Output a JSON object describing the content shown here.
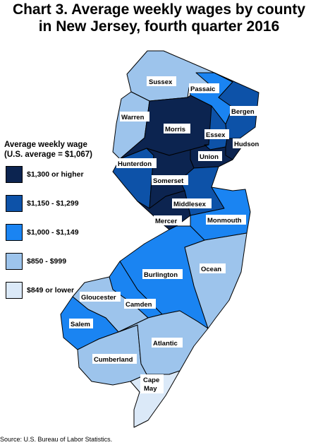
{
  "title": {
    "line1": "Chart 3. Average weekly wages by county",
    "line2": "in New Jersey, fourth quarter 2016"
  },
  "legend": {
    "title_line1": "Average weekly wage",
    "title_line2": "(U.S. average = $1,067)",
    "items": [
      {
        "label": "$1,300 or higher",
        "color": "#0c2450"
      },
      {
        "label": "$1,150 - $1,299",
        "color": "#0d52a8"
      },
      {
        "label": "$1,000 - $1,149",
        "color": "#1a84f2"
      },
      {
        "label": "$850 - $999",
        "color": "#9dc4ec"
      },
      {
        "label": "$849 or lower",
        "color": "#dbe9f8"
      }
    ]
  },
  "counties": [
    {
      "name": "Sussex",
      "label": "Sussex",
      "wage_class": "$850 - $999",
      "color": "#9dc4ec"
    },
    {
      "name": "Passaic",
      "label": "Passaic",
      "wage_class": "$1,000 - $1,149",
      "color": "#1a84f2"
    },
    {
      "name": "Bergen",
      "label": "Bergen",
      "wage_class": "$1,150 - $1,299",
      "color": "#0d52a8"
    },
    {
      "name": "Warren",
      "label": "Warren",
      "wage_class": "$850 - $999",
      "color": "#9dc4ec"
    },
    {
      "name": "Morris",
      "label": "Morris",
      "wage_class": "$1,300 or higher",
      "color": "#0c2450"
    },
    {
      "name": "Essex",
      "label": "Essex",
      "wage_class": "$1,150 - $1,299",
      "color": "#0d52a8"
    },
    {
      "name": "Hudson",
      "label": "Hudson",
      "wage_class": "$1,300 or higher",
      "color": "#0c2450"
    },
    {
      "name": "Union",
      "label": "Union",
      "wage_class": "$1,300 or higher",
      "color": "#0c2450"
    },
    {
      "name": "Hunterdon",
      "label": "Hunterdon",
      "wage_class": "$1,150 - $1,299",
      "color": "#0d52a8"
    },
    {
      "name": "Somerset",
      "label": "Somerset",
      "wage_class": "$1,300 or higher",
      "color": "#0c2450"
    },
    {
      "name": "Middlesex",
      "label": "Middlesex",
      "wage_class": "$1,150 - $1,299",
      "color": "#0d52a8"
    },
    {
      "name": "Mercer",
      "label": "Mercer",
      "wage_class": "$1,300 or higher",
      "color": "#0c2450"
    },
    {
      "name": "Monmouth",
      "label": "Monmouth",
      "wage_class": "$1,000 - $1,149",
      "color": "#1a84f2"
    },
    {
      "name": "Ocean",
      "label": "Ocean",
      "wage_class": "$850 - $999",
      "color": "#9dc4ec"
    },
    {
      "name": "Burlington",
      "label": "Burlington",
      "wage_class": "$1,000 - $1,149",
      "color": "#1a84f2"
    },
    {
      "name": "Camden",
      "label": "Camden",
      "wage_class": "$1,000 - $1,149",
      "color": "#1a84f2"
    },
    {
      "name": "Gloucester",
      "label": "Gloucester",
      "wage_class": "$850 - $999",
      "color": "#9dc4ec"
    },
    {
      "name": "Salem",
      "label": "Salem",
      "wage_class": "$1,000 - $1,149",
      "color": "#1a84f2"
    },
    {
      "name": "Cumberland",
      "label": "Cumberland",
      "wage_class": "$850 - $999",
      "color": "#9dc4ec"
    },
    {
      "name": "Atlantic",
      "label": "Atlantic",
      "wage_class": "$850 - $999",
      "color": "#9dc4ec"
    },
    {
      "name": "CapeMay",
      "label_line1": "Cape",
      "label_line2": "May",
      "wage_class": "$849 or lower",
      "color": "#dbe9f8"
    }
  ],
  "source": "Source: U.S. Bureau of Labor Statistics."
}
